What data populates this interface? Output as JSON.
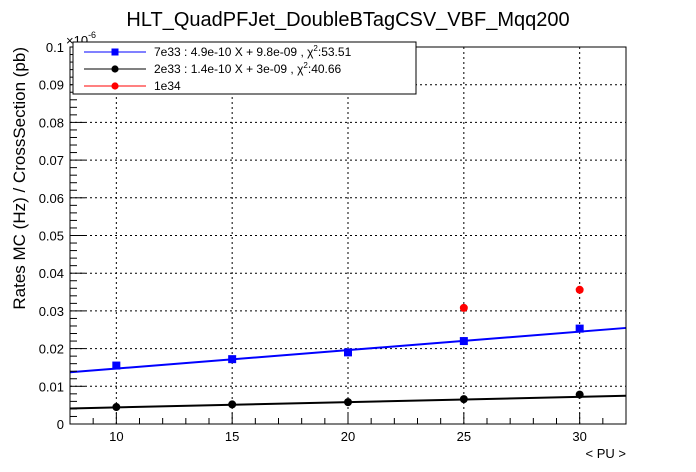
{
  "chart_data": {
    "type": "scatter",
    "title": "HLT_QuadPFJet_DoubleBTagCSV_VBF_Mqq200",
    "xlabel": "< PU >",
    "ylabel": "Rates MC (Hz) / CrossSection (pb)",
    "y_multiplier_label": "×10",
    "y_multiplier_exponent": "-6",
    "xlim": [
      8,
      32
    ],
    "ylim": [
      0,
      0.1
    ],
    "x_ticks": [
      10,
      15,
      20,
      25,
      30
    ],
    "x_tick_labels": [
      "10",
      "15",
      "20",
      "25",
      "30"
    ],
    "y_ticks": [
      0,
      0.01,
      0.02,
      0.03,
      0.04,
      0.05,
      0.06,
      0.07,
      0.08,
      0.09,
      0.1
    ],
    "y_tick_labels": [
      "0",
      "0.01",
      "0.02",
      "0.03",
      "0.04",
      "0.05",
      "0.06",
      "0.07",
      "0.08",
      "0.09",
      "0.1"
    ],
    "grid": true,
    "legend_position": "top-left",
    "series": [
      {
        "name": "7e33 : 4.9e-10 X + 9.8e-09 , χ²:53.51",
        "name_main": "7e33 : 4.9e-10 X + 9.8e-09 , χ",
        "name_sup": "2",
        "name_tail": ":53.51",
        "color": "#0000ff",
        "marker": "square",
        "x": [
          10,
          15,
          20,
          25,
          30
        ],
        "y": [
          0.0155,
          0.0172,
          0.019,
          0.022,
          0.0253
        ],
        "fit": {
          "slope": 0.00049,
          "intercept": 0.0098
        }
      },
      {
        "name": "2e33 : 1.4e-10 X + 3e-09 , χ²:40.66",
        "name_main": "2e33 : 1.4e-10 X + 3e-09 , χ",
        "name_sup": "2",
        "name_tail": ":40.66",
        "color": "#000000",
        "marker": "circle",
        "x": [
          10,
          15,
          20,
          25,
          30
        ],
        "y": [
          0.0045,
          0.0052,
          0.0058,
          0.0066,
          0.0078
        ],
        "fit": {
          "slope": 0.00014,
          "intercept": 0.003
        }
      },
      {
        "name": "1e34",
        "name_main": "1e34",
        "name_sup": "",
        "name_tail": "",
        "color": "#ff0000",
        "marker": "circle",
        "x": [
          25,
          30
        ],
        "y": [
          0.0308,
          0.0356
        ]
      }
    ]
  }
}
